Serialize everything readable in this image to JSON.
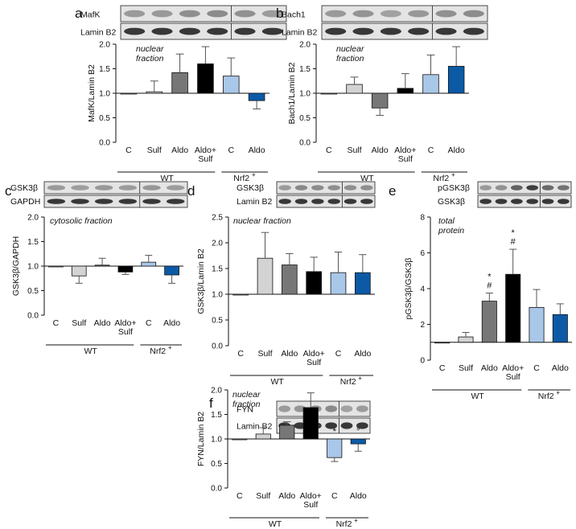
{
  "figure": {
    "colors": {
      "C": "#d3d3d3",
      "Sulf": "#d3d3d3",
      "Aldo": "#777777",
      "AldoSulf": "#000000",
      "Nrf2C": "#a9c7e8",
      "Nrf2Aldo": "#0c5aa6"
    },
    "group_labels": {
      "wt": "WT",
      "nrf2": "Nrf2"
    },
    "nrf2_superscript": "+",
    "categories": [
      "C",
      "Sulf",
      "Aldo",
      "Aldo+\nSulf",
      "C",
      "Aldo"
    ]
  },
  "chart_data": [
    {
      "panel": "a",
      "type": "bar",
      "annotation": "nuclear\nfraction",
      "ylabel": "MafK/Lamin B2",
      "ylim": [
        0,
        2.0
      ],
      "yticks": [
        "0.0",
        "0.5",
        "1.0",
        "1.5",
        "2.0"
      ],
      "baseline": 1.0,
      "values": [
        1.0,
        1.03,
        1.42,
        1.6,
        1.35,
        0.85
      ],
      "errors": [
        0,
        0.22,
        0.38,
        0.35,
        0.37,
        0.17
      ],
      "markers": [
        "",
        "",
        "",
        "",
        "",
        ""
      ],
      "blot_labels": [
        "MafK",
        "Lamin B2"
      ]
    },
    {
      "panel": "b",
      "type": "bar",
      "annotation": "nuclear\nfraction",
      "ylabel": "Bach1/Lamin B2",
      "ylim": [
        0,
        2.0
      ],
      "yticks": [
        "0.0",
        "0.5",
        "1.0",
        "1.5",
        "2.0"
      ],
      "baseline": 1.0,
      "values": [
        1.0,
        1.18,
        0.7,
        1.1,
        1.38,
        1.55
      ],
      "errors": [
        0,
        0.15,
        0.15,
        0.3,
        0.4,
        0.4
      ],
      "markers": [
        "",
        "",
        "",
        "",
        "",
        ""
      ],
      "blot_labels": [
        "Bach1",
        "Lamin B2"
      ]
    },
    {
      "panel": "c",
      "type": "bar",
      "annotation": "cytosolic fraction",
      "ylabel": "GSK3β/GAPDH",
      "ylim": [
        0,
        2.0
      ],
      "yticks": [
        "0.0",
        "0.5",
        "1.0",
        "1.5",
        "2.0"
      ],
      "baseline": 1.0,
      "values": [
        1.0,
        0.8,
        1.02,
        0.88,
        1.08,
        0.82
      ],
      "errors": [
        0,
        0.15,
        0.14,
        0.05,
        0.14,
        0.17
      ],
      "markers": [
        "",
        "",
        "",
        "",
        "",
        ""
      ],
      "blot_labels": [
        "GSK3β",
        "GAPDH"
      ]
    },
    {
      "panel": "d",
      "type": "bar",
      "annotation": "nuclear fraction",
      "ylabel": "GSK3β/Lamin B2",
      "ylim": [
        0,
        2.5
      ],
      "yticks": [
        "0.0",
        "0.5",
        "1.0",
        "1.5",
        "2.0",
        "2.5"
      ],
      "baseline": 1.0,
      "values": [
        1.0,
        1.7,
        1.57,
        1.44,
        1.42,
        1.42
      ],
      "errors": [
        0,
        0.5,
        0.22,
        0.28,
        0.4,
        0.35
      ],
      "markers": [
        "",
        "",
        "",
        "",
        "",
        ""
      ],
      "blot_labels": [
        "GSK3β",
        "Lamin B2"
      ]
    },
    {
      "panel": "e",
      "type": "bar",
      "annotation": "total\nprotein",
      "ylabel": "pGSK3β/GSK3β",
      "ylim": [
        0,
        8
      ],
      "yticks": [
        "0",
        "2",
        "4",
        "6",
        "8"
      ],
      "baseline": 1.0,
      "values": [
        1.0,
        1.3,
        3.3,
        4.8,
        2.95,
        2.55
      ],
      "errors": [
        0,
        0.25,
        0.45,
        1.4,
        1.0,
        0.6
      ],
      "markers": [
        "",
        "",
        "*\n#",
        "*\n#",
        "",
        ""
      ],
      "blot_labels": [
        "pGSK3β",
        "GSK3β"
      ]
    },
    {
      "panel": "f",
      "type": "bar",
      "annotation": "nuclear\nfraction",
      "ylabel": "FYN/Lamin B2",
      "ylim": [
        0,
        2.0
      ],
      "yticks": [
        "0.0",
        "0.5",
        "1.0",
        "1.5",
        "2.0"
      ],
      "baseline": 1.0,
      "values": [
        1.0,
        1.1,
        1.28,
        1.64,
        0.62,
        0.9
      ],
      "errors": [
        0,
        0.13,
        0.07,
        0.3,
        0.08,
        0.15
      ],
      "markers": [
        "",
        "",
        "",
        "",
        "*",
        "°"
      ],
      "blot_labels": [
        "FYN",
        "Lamin B2"
      ]
    }
  ]
}
